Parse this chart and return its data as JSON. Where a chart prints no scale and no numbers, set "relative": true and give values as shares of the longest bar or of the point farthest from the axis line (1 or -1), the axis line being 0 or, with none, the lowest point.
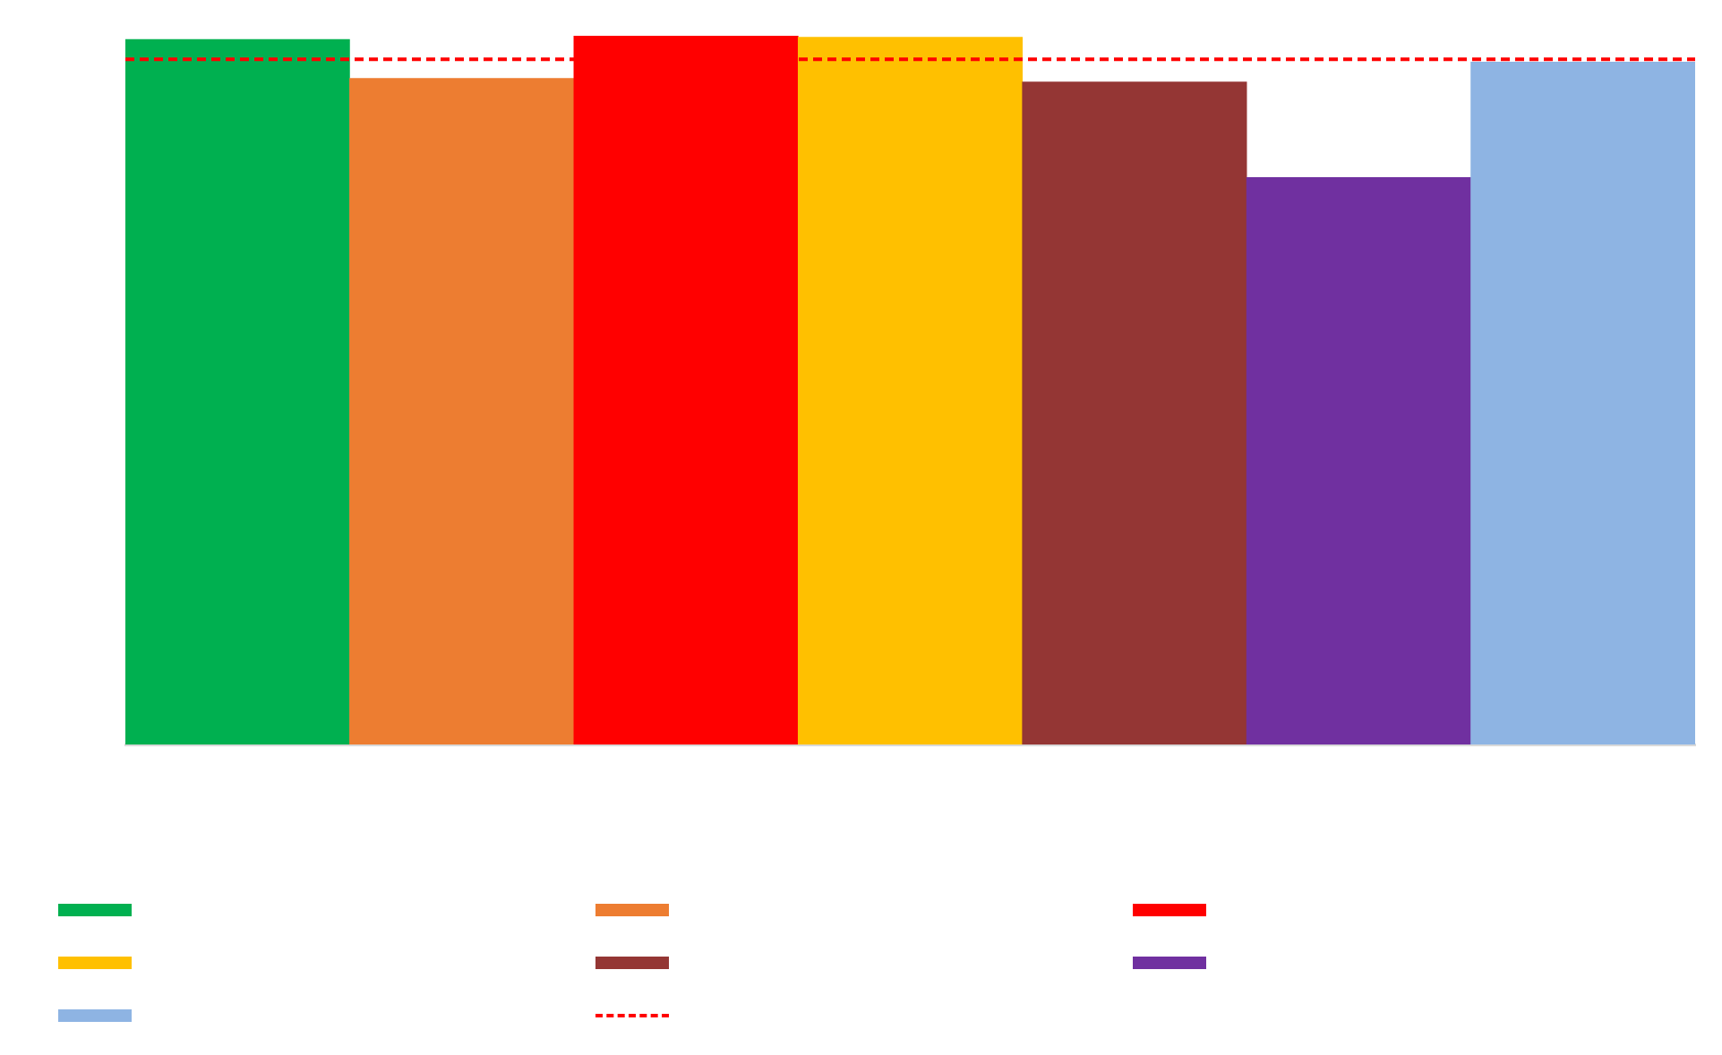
{
  "chart_data": {
    "type": "bar",
    "relative": true,
    "categories": [
      null,
      null,
      null,
      null,
      null,
      null,
      null
    ],
    "values": [
      0.995,
      0.94,
      1,
      0.998,
      0.935,
      0.8,
      0.963
    ],
    "colors": [
      "#00b050",
      "#ed7d31",
      "#ff0000",
      "#ffc000",
      "#943634",
      "#7030a0",
      "#8eb4e3"
    ],
    "ref_lines": [
      {
        "axis": "y",
        "value": 0.967,
        "color": "#ff0000",
        "line_style": "dashed"
      }
    ]
  }
}
